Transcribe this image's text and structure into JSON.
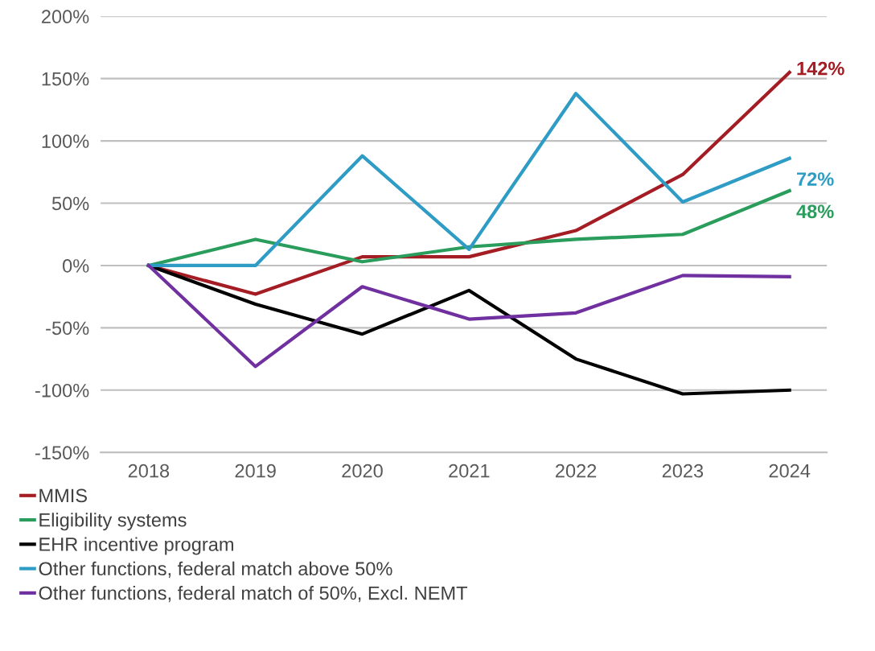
{
  "chart_data": {
    "type": "line",
    "categories": [
      "2018",
      "2019",
      "2020",
      "2021",
      "2022",
      "2023",
      "2024"
    ],
    "series": [
      {
        "name": "MMIS",
        "color": "#a51d24",
        "values": [
          0,
          -23,
          7,
          7,
          28,
          73,
          155
        ]
      },
      {
        "name": "Eligibility systems",
        "color": "#2a9d5c",
        "values": [
          0,
          21,
          3,
          15,
          21,
          25,
          60
        ]
      },
      {
        "name": "EHR incentive program",
        "color": "#000000",
        "values": [
          0,
          -31,
          -55,
          -20,
          -75,
          -103,
          -100
        ]
      },
      {
        "name": "Other functions, federal match above 50%",
        "color": "#2e9cc4",
        "values": [
          0,
          0,
          88,
          13,
          138,
          51,
          86
        ]
      },
      {
        "name": "Other functions, federal match of 50%, Excl. NEMT",
        "color": "#7030a0",
        "values": [
          0,
          -81,
          -17,
          -43,
          -38,
          -8,
          -9
        ]
      }
    ],
    "ylim": [
      -150,
      200
    ],
    "yticks": [
      {
        "value": -150,
        "label": "-150%"
      },
      {
        "value": -100,
        "label": "-100%"
      },
      {
        "value": -50,
        "label": "-50%"
      },
      {
        "value": 0,
        "label": "0%"
      },
      {
        "value": 50,
        "label": "50%"
      },
      {
        "value": 100,
        "label": "100%"
      },
      {
        "value": 150,
        "label": "150%"
      },
      {
        "value": 200,
        "label": "200%"
      }
    ],
    "grid": "y",
    "legend": "bottom",
    "marker": "none",
    "line_style": "solid",
    "annotations": [
      {
        "text": "142%",
        "x": "2024",
        "y": 155
      },
      {
        "text": "72%",
        "x": "2024",
        "y": 86
      },
      {
        "text": "48%",
        "x": "2024",
        "y": 60
      }
    ]
  }
}
